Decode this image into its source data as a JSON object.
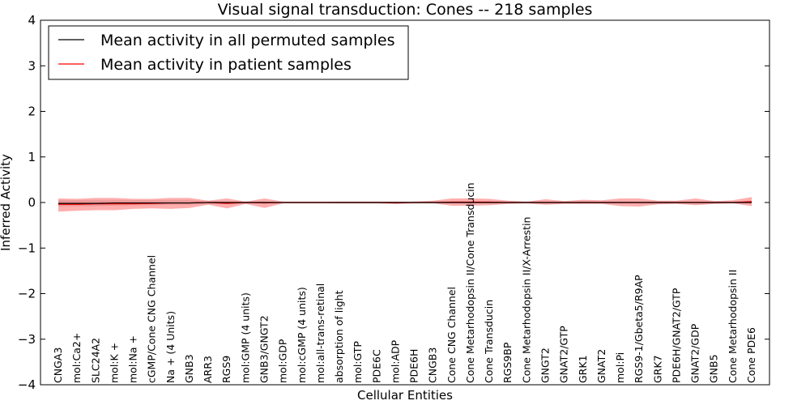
{
  "chart_data": {
    "type": "line",
    "title": "Visual signal transduction: Cones -- 218 samples",
    "xlabel": "Cellular Entities",
    "ylabel": "Inferred Activity",
    "ylim": [
      -4,
      4
    ],
    "yticks": [
      -4,
      -3,
      -2,
      -1,
      0,
      1,
      2,
      3,
      4
    ],
    "grid": false,
    "legend_position": "top-left",
    "categories": [
      "CNGA3",
      "mol:Ca2+",
      "SLC24A2",
      "mol:K +",
      "mol:Na +",
      "cGMP/Cone CNG Channel",
      "Na + (4 Units)",
      "GNB3",
      "ARR3",
      "RGS9",
      "mol:GMP (4 units)",
      "GNB3/GNGT2",
      "mol:GDP",
      "mol:cGMP (4 units)",
      "mol:all-trans-retinal",
      "absorption of light",
      "mol:GTP",
      "PDE6C",
      "mol:ADP",
      "PDE6H",
      "CNGB3",
      "Cone CNG Channel",
      "Cone Metarhodopsin II/Cone Transducin",
      "Cone Transducin",
      "RGS9BP",
      "Cone Metarhodopsin II/X-Arrestin",
      "GNGT2",
      "GNAT2/GTP",
      "GRK1",
      "GNAT2",
      "mol:Pi",
      "RGS9-1/Gbeta5/R9AP",
      "GRK7",
      "PDE6H/GNAT2/GTP",
      "GNAT2/GDP",
      "GNB5",
      "Cone Metarhodopsin II",
      "Cone PDE6"
    ],
    "series": [
      {
        "name": "Mean activity in all permuted samples",
        "color": "#000000",
        "values": [
          -0.02,
          -0.02,
          -0.02,
          -0.01,
          -0.01,
          -0.01,
          -0.01,
          -0.01,
          0.0,
          0.0,
          0.0,
          0.0,
          0.0,
          0.0,
          0.0,
          0.0,
          0.0,
          0.0,
          0.0,
          0.0,
          0.0,
          0.0,
          0.0,
          0.0,
          0.0,
          0.0,
          0.0,
          0.0,
          0.0,
          0.0,
          0.0,
          0.0,
          0.0,
          0.0,
          0.0,
          0.0,
          0.0,
          0.0
        ],
        "lower": [
          -0.08,
          -0.08,
          -0.08,
          -0.07,
          -0.06,
          -0.06,
          -0.05,
          -0.05,
          -0.03,
          -0.02,
          -0.02,
          -0.02,
          -0.01,
          -0.01,
          -0.01,
          -0.02,
          -0.02,
          -0.02,
          -0.02,
          -0.02,
          -0.02,
          -0.02,
          -0.02,
          -0.02,
          -0.02,
          -0.02,
          -0.02,
          -0.02,
          -0.02,
          -0.02,
          -0.02,
          -0.02,
          -0.02,
          -0.02,
          -0.02,
          -0.02,
          -0.02,
          -0.02
        ],
        "upper": [
          0.05,
          0.05,
          0.05,
          0.05,
          0.05,
          0.05,
          0.05,
          0.05,
          0.03,
          0.02,
          0.02,
          0.02,
          0.01,
          0.01,
          0.01,
          0.02,
          0.02,
          0.02,
          0.02,
          0.02,
          0.02,
          0.02,
          0.02,
          0.02,
          0.02,
          0.02,
          0.02,
          0.02,
          0.02,
          0.02,
          0.02,
          0.02,
          0.02,
          0.02,
          0.02,
          0.02,
          0.02,
          0.02
        ]
      },
      {
        "name": "Mean activity in patient samples",
        "color": "#ff0000",
        "values": [
          -0.04,
          -0.04,
          -0.03,
          -0.03,
          -0.03,
          -0.02,
          -0.01,
          -0.01,
          0.0,
          -0.02,
          0.0,
          -0.01,
          0.0,
          0.0,
          0.0,
          0.0,
          0.0,
          0.0,
          -0.01,
          0.0,
          0.0,
          0.01,
          0.01,
          0.01,
          0.0,
          0.0,
          0.0,
          0.0,
          0.0,
          0.0,
          0.0,
          0.0,
          0.0,
          0.0,
          0.0,
          0.0,
          0.0,
          0.02
        ],
        "lower": [
          -0.2,
          -0.18,
          -0.17,
          -0.17,
          -0.14,
          -0.13,
          -0.14,
          -0.12,
          -0.05,
          -0.13,
          -0.03,
          -0.12,
          -0.02,
          -0.02,
          -0.02,
          -0.02,
          -0.02,
          -0.02,
          -0.03,
          -0.02,
          -0.02,
          -0.07,
          -0.07,
          -0.06,
          -0.03,
          -0.02,
          -0.05,
          -0.03,
          -0.03,
          -0.03,
          -0.08,
          -0.09,
          -0.04,
          -0.03,
          -0.06,
          -0.03,
          -0.02,
          -0.08
        ],
        "upper": [
          0.09,
          0.08,
          0.1,
          0.1,
          0.08,
          0.08,
          0.1,
          0.1,
          0.04,
          0.09,
          0.02,
          0.09,
          0.02,
          0.02,
          0.02,
          0.02,
          0.02,
          0.02,
          0.02,
          0.02,
          0.04,
          0.09,
          0.09,
          0.08,
          0.04,
          0.02,
          0.07,
          0.03,
          0.06,
          0.05,
          0.09,
          0.09,
          0.04,
          0.04,
          0.09,
          0.03,
          0.05,
          0.12
        ]
      }
    ]
  }
}
